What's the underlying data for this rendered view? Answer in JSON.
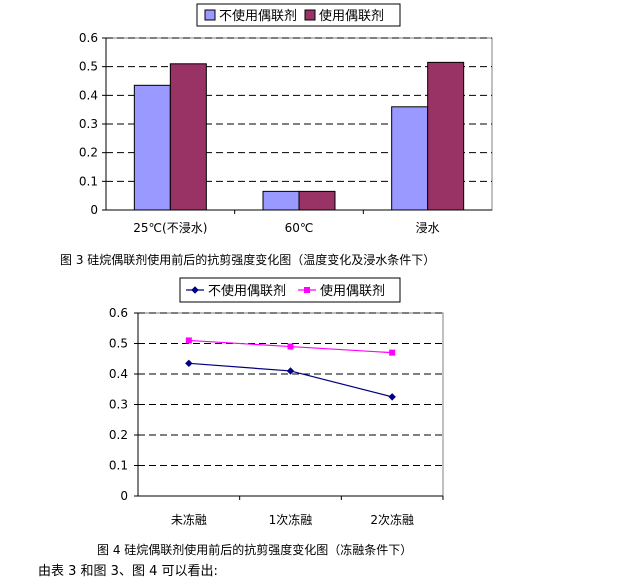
{
  "figure3": {
    "caption": "图 3 硅烷偶联剂使用前后的抗剪强度变化图（温度变化及浸水条件下）",
    "chart_data": {
      "type": "bar",
      "categories": [
        "25℃(不浸水)",
        "60℃",
        "浸水"
      ],
      "series": [
        {
          "name": "不使用偶联剂",
          "values": [
            0.435,
            0.065,
            0.36
          ],
          "color": "#9999ff"
        },
        {
          "name": "使用偶联剂",
          "values": [
            0.51,
            0.065,
            0.515
          ],
          "color": "#993366"
        }
      ],
      "ylim": [
        0,
        0.6
      ],
      "yticks": [
        "0",
        "0.1",
        "0.2",
        "0.3",
        "0.4",
        "0.5",
        "0.6"
      ],
      "grid": "dashed horizontal",
      "legend": "top"
    }
  },
  "figure4": {
    "caption": "图 4 硅烷偶联剂使用前后的抗剪强度变化图（冻融条件下）",
    "chart_data": {
      "type": "line",
      "categories": [
        "未冻融",
        "1次冻融",
        "2次冻融"
      ],
      "series": [
        {
          "name": "不使用偶联剂",
          "values": [
            0.435,
            0.41,
            0.325
          ],
          "color": "#000080",
          "marker": "diamond"
        },
        {
          "name": "使用偶联剂",
          "values": [
            0.51,
            0.49,
            0.47
          ],
          "color": "#ff00ff",
          "marker": "square"
        }
      ],
      "ylim": [
        0,
        0.6
      ],
      "yticks": [
        "0",
        "0.1",
        "0.2",
        "0.3",
        "0.4",
        "0.5",
        "0.6"
      ],
      "grid": "dashed horizontal",
      "legend": "top"
    }
  },
  "body_text": "由表 3 和图 3、图 4 可以看出:"
}
